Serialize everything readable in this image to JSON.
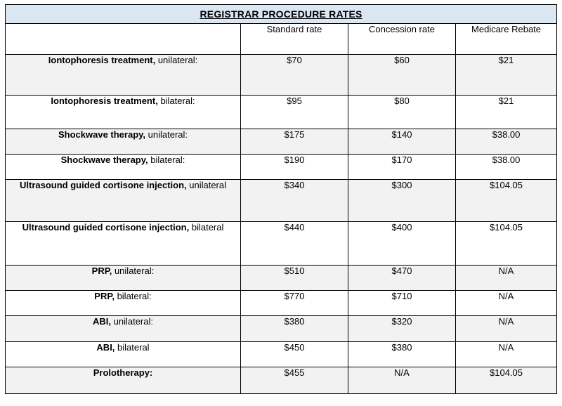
{
  "table": {
    "title": "REGISTRAR PROCEDURE RATES",
    "columns": [
      "",
      "Standard rate",
      "Concession rate",
      "Medicare Rebate"
    ],
    "rows": [
      {
        "bold": "Iontophoresis treatment,",
        "rest": " unilateral:",
        "standard": "$70",
        "concession": "$60",
        "medicare": "$21"
      },
      {
        "bold": "Iontophoresis treatment,",
        "rest": " bilateral:",
        "standard": "$95",
        "concession": "$80",
        "medicare": "$21"
      },
      {
        "bold": "Shockwave therapy,",
        "rest": " unilateral:",
        "standard": "$175",
        "concession": "$140",
        "medicare": "$38.00"
      },
      {
        "bold": "Shockwave therapy,",
        "rest": " bilateral:",
        "standard": "$190",
        "concession": "$170",
        "medicare": "$38.00"
      },
      {
        "bold": "Ultrasound guided cortisone injection,",
        "rest": " unilateral",
        "standard": "$340",
        "concession": "$300",
        "medicare": "$104.05"
      },
      {
        "bold": "Ultrasound guided cortisone injection,",
        "rest": " bilateral",
        "standard": "$440",
        "concession": "$400",
        "medicare": "$104.05"
      },
      {
        "bold": "PRP,",
        "rest": " unilateral:",
        "standard": "$510",
        "concession": "$470",
        "medicare": "N/A"
      },
      {
        "bold": "PRP,",
        "rest": " bilateral:",
        "standard": "$770",
        "concession": "$710",
        "medicare": "N/A"
      },
      {
        "bold": "ABI,",
        "rest": " unilateral:",
        "standard": "$380",
        "concession": "$320",
        "medicare": "N/A"
      },
      {
        "bold": "ABI,",
        "rest": " bilateral",
        "standard": "$450",
        "concession": "$380",
        "medicare": "N/A"
      },
      {
        "bold": "Prolotherapy:",
        "rest": "",
        "standard": "$455",
        "concession": "N/A",
        "medicare": "$104.05"
      }
    ]
  }
}
